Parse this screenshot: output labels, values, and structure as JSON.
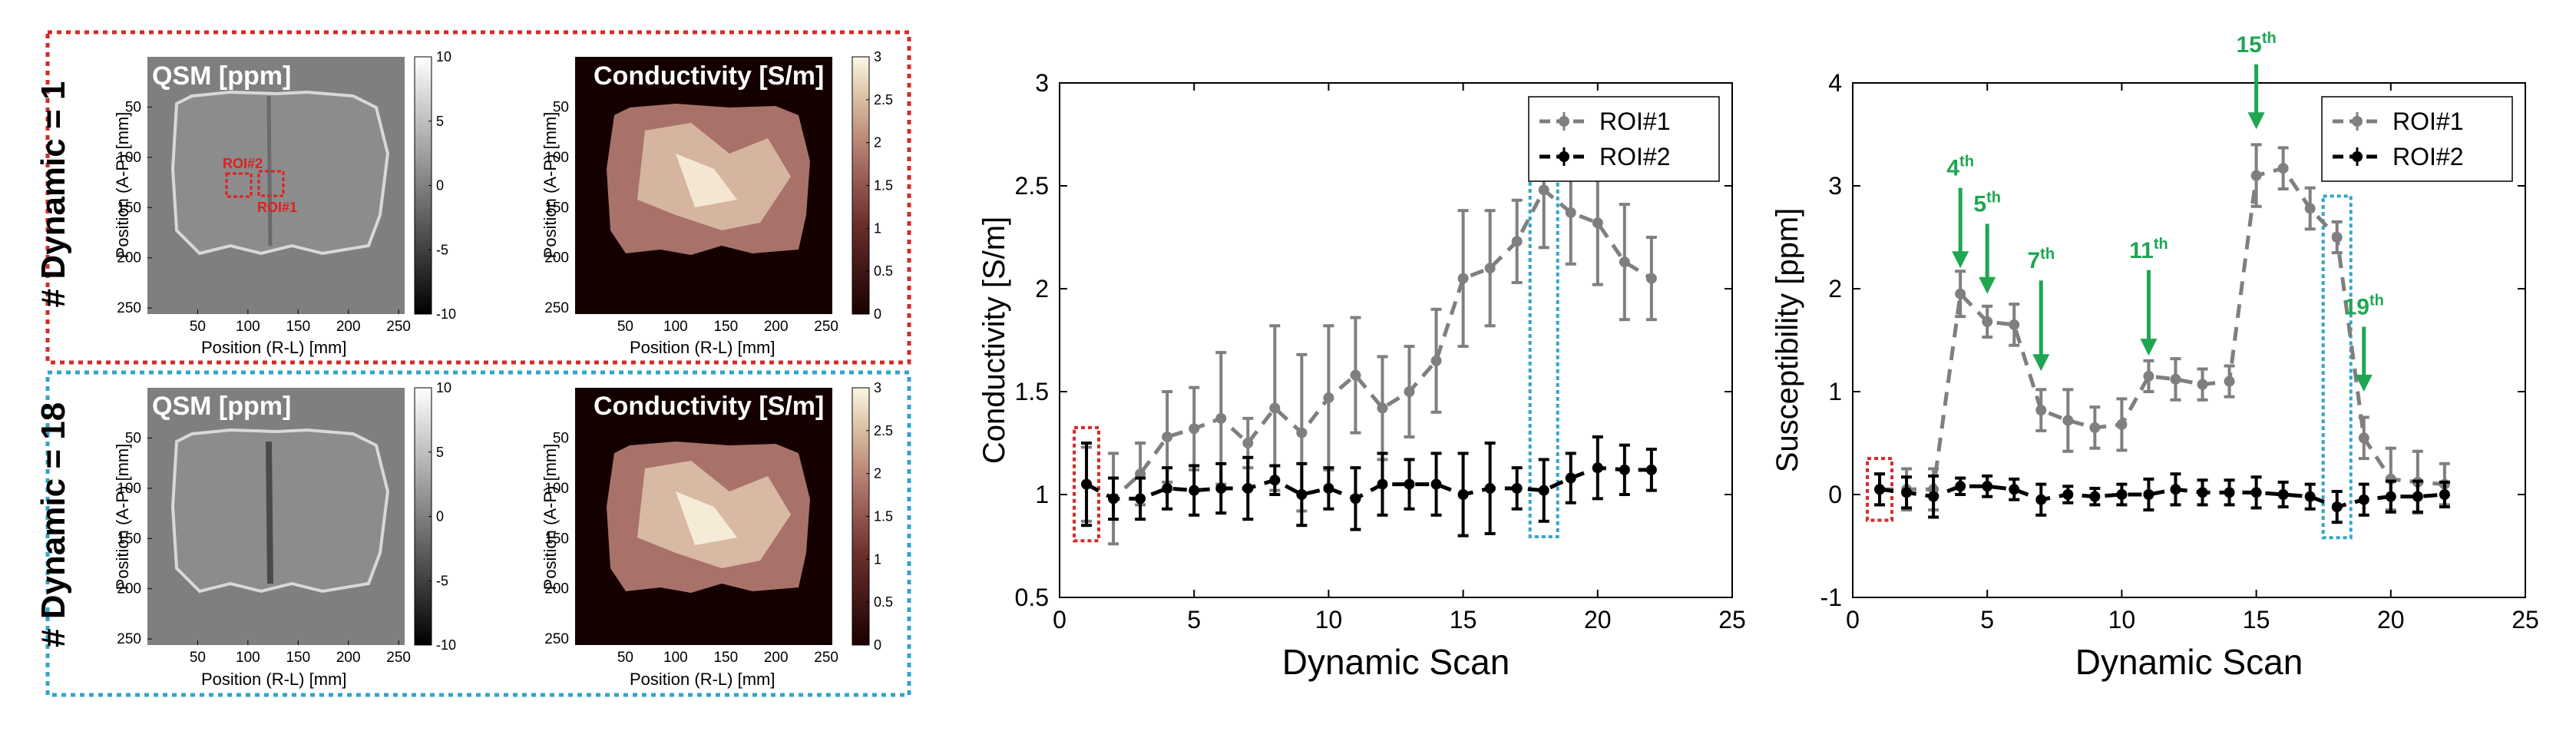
{
  "colors": {
    "roi1": "#7f7f7f",
    "roi2": "#000000",
    "green": "#1ea653",
    "red_box": "#d42a2a",
    "cyan_box": "#31a4cc"
  },
  "panels": [
    {
      "dynamic_label": "# Dynamic = 1",
      "box_color": "red",
      "qsm": {
        "title": "QSM [ppm]",
        "colorbar_ticks": [
          "10",
          "5",
          "0",
          "-5",
          "-10"
        ],
        "roi_labels": [
          "ROI#2",
          "ROI#1"
        ]
      },
      "cond": {
        "title": "Conductivity [S/m]",
        "colorbar_ticks": [
          "3",
          "2.5",
          "2",
          "1.5",
          "1",
          "0.5",
          "0"
        ]
      }
    },
    {
      "dynamic_label": "# Dynamic = 18",
      "box_color": "cyan",
      "qsm": {
        "title": "QSM [ppm]",
        "colorbar_ticks": [
          "10",
          "5",
          "0",
          "-5",
          "-10"
        ]
      },
      "cond": {
        "title": "Conductivity [S/m]",
        "colorbar_ticks": [
          "3",
          "2.5",
          "2",
          "1.5",
          "1",
          "0.5",
          "0"
        ]
      }
    }
  ],
  "image_axes": {
    "xlabel": "Position (R-L) [mm]",
    "ylabel": "Position (A-P) [mm]",
    "xticks": [
      "50",
      "100",
      "150",
      "200",
      "250"
    ],
    "yticks": [
      "50",
      "100",
      "150",
      "200",
      "250"
    ]
  },
  "chart_data": [
    {
      "type": "line",
      "xlabel": "Dynamic Scan",
      "ylabel": "Conductivity [S/m]",
      "xlim": [
        0,
        25
      ],
      "ylim": [
        0.5,
        3
      ],
      "xticks": [
        0,
        5,
        10,
        15,
        20,
        25
      ],
      "yticks": [
        0.5,
        1,
        1.5,
        2,
        2.5,
        3
      ],
      "legend": "top-right",
      "highlight_red_x": 1,
      "highlight_cyan_x": 18,
      "series": [
        {
          "name": "ROI#1",
          "x": [
            1,
            2,
            3,
            4,
            5,
            6,
            7,
            8,
            9,
            10,
            11,
            12,
            13,
            14,
            15,
            16,
            17,
            18,
            19,
            20,
            21,
            22
          ],
          "y": [
            1.05,
            0.98,
            1.1,
            1.28,
            1.32,
            1.37,
            1.25,
            1.42,
            1.3,
            1.47,
            1.58,
            1.42,
            1.5,
            1.65,
            2.05,
            2.1,
            2.23,
            2.48,
            2.37,
            2.32,
            2.13,
            2.05
          ],
          "err": [
            0.18,
            0.22,
            0.15,
            0.22,
            0.2,
            0.32,
            0.12,
            0.4,
            0.38,
            0.35,
            0.28,
            0.25,
            0.22,
            0.25,
            0.33,
            0.28,
            0.2,
            0.28,
            0.25,
            0.3,
            0.28,
            0.2
          ]
        },
        {
          "name": "ROI#2",
          "x": [
            1,
            2,
            3,
            4,
            5,
            6,
            7,
            8,
            9,
            10,
            11,
            12,
            13,
            14,
            15,
            16,
            17,
            18,
            19,
            20,
            21,
            22
          ],
          "y": [
            1.05,
            0.98,
            0.98,
            1.03,
            1.02,
            1.03,
            1.03,
            1.07,
            1.0,
            1.03,
            0.98,
            1.05,
            1.05,
            1.05,
            1.0,
            1.03,
            1.03,
            1.02,
            1.08,
            1.13,
            1.12,
            1.12
          ],
          "err": [
            0.2,
            0.1,
            0.1,
            0.1,
            0.12,
            0.12,
            0.15,
            0.07,
            0.15,
            0.1,
            0.15,
            0.15,
            0.12,
            0.15,
            0.2,
            0.22,
            0.1,
            0.15,
            0.12,
            0.15,
            0.12,
            0.1
          ]
        }
      ]
    },
    {
      "type": "line",
      "xlabel": "Dynamic Scan",
      "ylabel": "Susceptibility [ppm]",
      "xlim": [
        0,
        25
      ],
      "ylim": [
        -1,
        4
      ],
      "xticks": [
        0,
        5,
        10,
        15,
        20,
        25
      ],
      "yticks": [
        -1,
        0,
        1,
        2,
        3,
        4
      ],
      "legend": "top-right",
      "highlight_red_x": 1,
      "highlight_cyan_x": 18,
      "series": [
        {
          "name": "ROI#1",
          "x": [
            1,
            2,
            3,
            4,
            5,
            6,
            7,
            8,
            9,
            10,
            11,
            12,
            13,
            14,
            15,
            16,
            17,
            18,
            19,
            20,
            21,
            22
          ],
          "y": [
            0.05,
            0.05,
            0.05,
            1.95,
            1.68,
            1.65,
            0.82,
            0.72,
            0.65,
            0.68,
            1.15,
            1.12,
            1.07,
            1.1,
            3.1,
            3.17,
            2.78,
            2.5,
            0.55,
            0.15,
            0.12,
            0.1
          ],
          "err": [
            0.15,
            0.2,
            0.2,
            0.22,
            0.15,
            0.2,
            0.2,
            0.3,
            0.2,
            0.25,
            0.15,
            0.2,
            0.15,
            0.15,
            0.3,
            0.2,
            0.2,
            0.15,
            0.2,
            0.3,
            0.3,
            0.2
          ]
        },
        {
          "name": "ROI#2",
          "x": [
            1,
            2,
            3,
            4,
            5,
            6,
            7,
            8,
            9,
            10,
            11,
            12,
            13,
            14,
            15,
            16,
            17,
            18,
            19,
            20,
            21,
            22
          ],
          "y": [
            0.05,
            0.02,
            -0.02,
            0.08,
            0.08,
            0.05,
            -0.05,
            0.0,
            -0.02,
            0.0,
            0.0,
            0.05,
            0.02,
            0.02,
            0.02,
            0.0,
            -0.02,
            -0.12,
            -0.05,
            -0.02,
            -0.02,
            0.0
          ],
          "err": [
            0.15,
            0.15,
            0.2,
            0.08,
            0.1,
            0.1,
            0.15,
            0.08,
            0.08,
            0.1,
            0.15,
            0.15,
            0.12,
            0.12,
            0.15,
            0.12,
            0.12,
            0.15,
            0.15,
            0.15,
            0.15,
            0.12
          ]
        }
      ],
      "annotations": [
        {
          "label": "4",
          "sup": "th",
          "x": 4,
          "y": 2.2,
          "ytext": 3.1
        },
        {
          "label": "5",
          "sup": "th",
          "x": 5,
          "y": 1.95,
          "ytext": 2.75
        },
        {
          "label": "7",
          "sup": "th",
          "x": 7,
          "y": 1.2,
          "ytext": 2.2
        },
        {
          "label": "11",
          "sup": "th",
          "x": 11,
          "y": 1.35,
          "ytext": 2.3
        },
        {
          "label": "15",
          "sup": "th",
          "x": 15,
          "y": 3.55,
          "ytext": 4.3
        },
        {
          "label": "19",
          "sup": "th",
          "x": 19,
          "y": 1.0,
          "ytext": 1.75
        }
      ]
    }
  ]
}
